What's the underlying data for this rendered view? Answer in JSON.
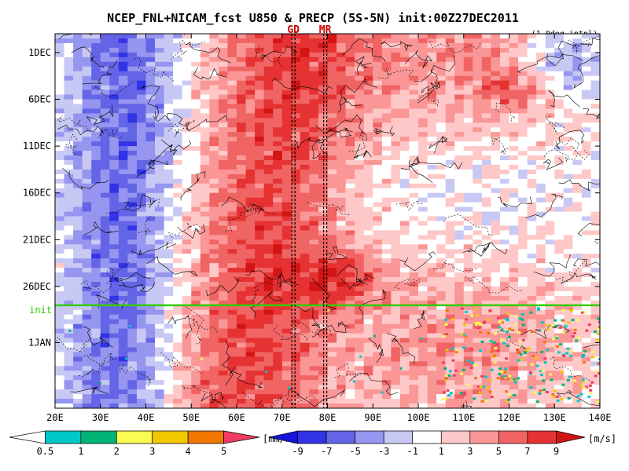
{
  "chart_data": {
    "type": "heatmap",
    "title": "NCEP_FNL+NICAM_fcst U850 & PRECP (5S-5N) init:00Z27DEC2011",
    "subtitle": "(1.0deg intpl)",
    "x_ticks": [
      "20E",
      "30E",
      "40E",
      "50E",
      "60E",
      "70E",
      "80E",
      "90E",
      "100E",
      "110E",
      "120E",
      "130E",
      "140E"
    ],
    "x_range": [
      20,
      140
    ],
    "y_ticks": [
      "1DEC",
      "6DEC",
      "11DEC",
      "16DEC",
      "21DEC",
      "26DEC",
      "1JAN"
    ],
    "y_range_days": [
      -2,
      38
    ],
    "reference_lines": [
      {
        "label": "GD",
        "lon": 72.5,
        "color": "#cc0000"
      },
      {
        "label": "MR",
        "lon": 79.5,
        "color": "#cc0000"
      }
    ],
    "init_line": {
      "label": "init",
      "day": 27,
      "color": "#33cc00"
    },
    "precip_legend": {
      "labels": [
        "0.5",
        "1",
        "2",
        "3",
        "4",
        "5"
      ],
      "unit": "[mm/h]",
      "colors": [
        "#ffffff",
        "#00c8c8",
        "#00b478",
        "#fafa50",
        "#f0c800",
        "#f07800",
        "#f03c64"
      ]
    },
    "wind_legend": {
      "labels": [
        "-9",
        "-7",
        "-5",
        "-3",
        "-1",
        "1",
        "3",
        "5",
        "7",
        "9"
      ],
      "unit": "[m/s]",
      "colors": [
        "#1414dc",
        "#3232e6",
        "#6464e6",
        "#9696f0",
        "#c8c8f5",
        "#ffffff",
        "#ffc8c8",
        "#fa9696",
        "#f06464",
        "#e63232",
        "#d21414"
      ]
    }
  }
}
